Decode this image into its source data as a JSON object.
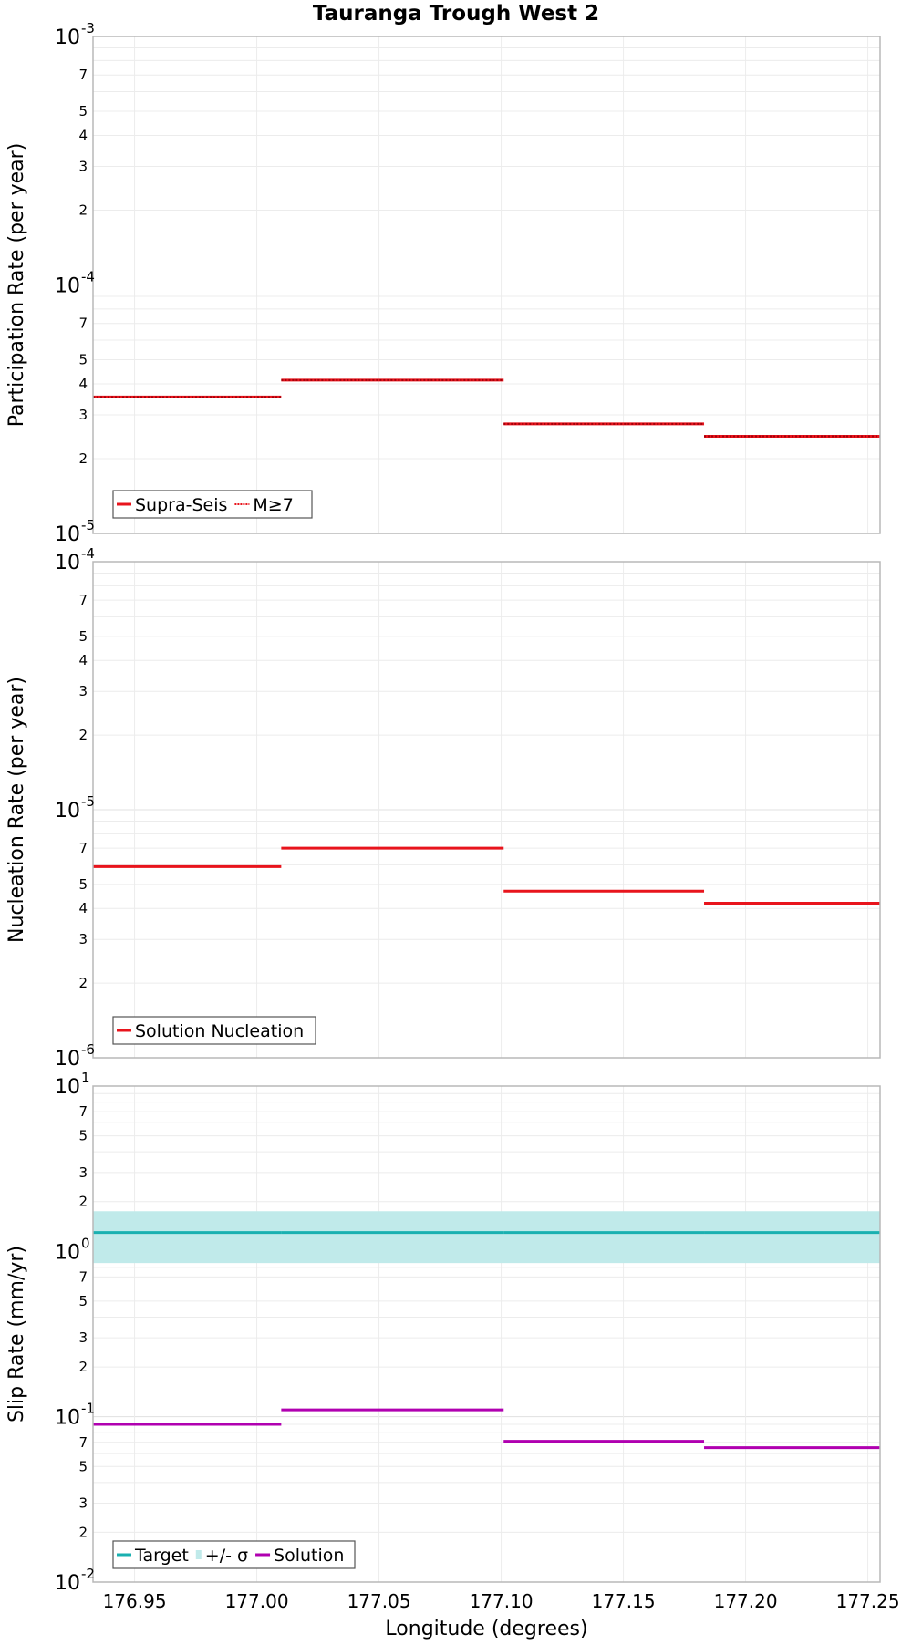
{
  "chart_data": {
    "type": "step",
    "title": "Tauranga Trough West 2",
    "xlabel": "Longitude (degrees)",
    "xlim": [
      176.933,
      177.255
    ],
    "x_ticks": [
      "176.95",
      "177.00",
      "177.05",
      "177.10",
      "177.15",
      "177.20",
      "177.25"
    ],
    "segment_edges": [
      176.933,
      177.01,
      177.101,
      177.183,
      177.255
    ],
    "panels": [
      {
        "id": "participation",
        "ylabel": "Participation Rate (per year)",
        "yscale": "log",
        "ylim": [
          1e-05,
          0.001
        ],
        "decade_labels": [
          {
            "base": "10",
            "exp": "-5"
          },
          {
            "base": "10",
            "exp": "-4"
          },
          {
            "base": "10",
            "exp": "-3"
          }
        ],
        "minor_labels": [
          "2",
          "3",
          "4",
          "5",
          "7"
        ],
        "series": [
          {
            "name": "Supra-Seis",
            "style": "solid",
            "color": "#e8141c",
            "values": [
              3.54e-05,
              4.14e-05,
              2.76e-05,
              2.46e-05
            ]
          },
          {
            "name": "M≥7",
            "style": "dotted",
            "color": "#e8141c",
            "values": [
              3.54e-05,
              4.14e-05,
              2.76e-05,
              2.46e-05
            ]
          }
        ],
        "legend": [
          "Supra-Seis",
          "M≥7"
        ]
      },
      {
        "id": "nucleation",
        "ylabel": "Nucleation Rate (per year)",
        "yscale": "log",
        "ylim": [
          1e-06,
          0.0001
        ],
        "decade_labels": [
          {
            "base": "10",
            "exp": "-6"
          },
          {
            "base": "10",
            "exp": "-5"
          },
          {
            "base": "10",
            "exp": "-4"
          }
        ],
        "minor_labels": [
          "2",
          "3",
          "4",
          "5",
          "7"
        ],
        "series": [
          {
            "name": "Solution Nucleation",
            "style": "solid",
            "color": "#e8141c",
            "values": [
              5.9e-06,
              7e-06,
              4.7e-06,
              4.2e-06
            ]
          }
        ],
        "legend": [
          "Solution Nucleation"
        ]
      },
      {
        "id": "slip",
        "ylabel": "Slip Rate (mm/yr)",
        "yscale": "log",
        "ylim": [
          0.01,
          10
        ],
        "decade_labels": [
          {
            "base": "10",
            "exp": "-2"
          },
          {
            "base": "10",
            "exp": "-1"
          },
          {
            "base": "10",
            "exp": "0"
          },
          {
            "base": "10",
            "exp": "1"
          }
        ],
        "minor_labels": [
          "2",
          "3",
          "5",
          "7"
        ],
        "series": [
          {
            "name": "Target",
            "style": "solid",
            "color": "#1ab0b0",
            "values": [
              1.3,
              1.3,
              1.3,
              1.3
            ]
          },
          {
            "name": "Solution",
            "style": "solid",
            "color": "#b000b0",
            "values": [
              0.09,
              0.11,
              0.071,
              0.065
            ]
          }
        ],
        "band": {
          "name": "+/- σ",
          "color": "#c0eaea",
          "low": 0.85,
          "high": 1.75
        },
        "legend": [
          "Target",
          "+/- σ",
          "Solution"
        ]
      }
    ]
  }
}
